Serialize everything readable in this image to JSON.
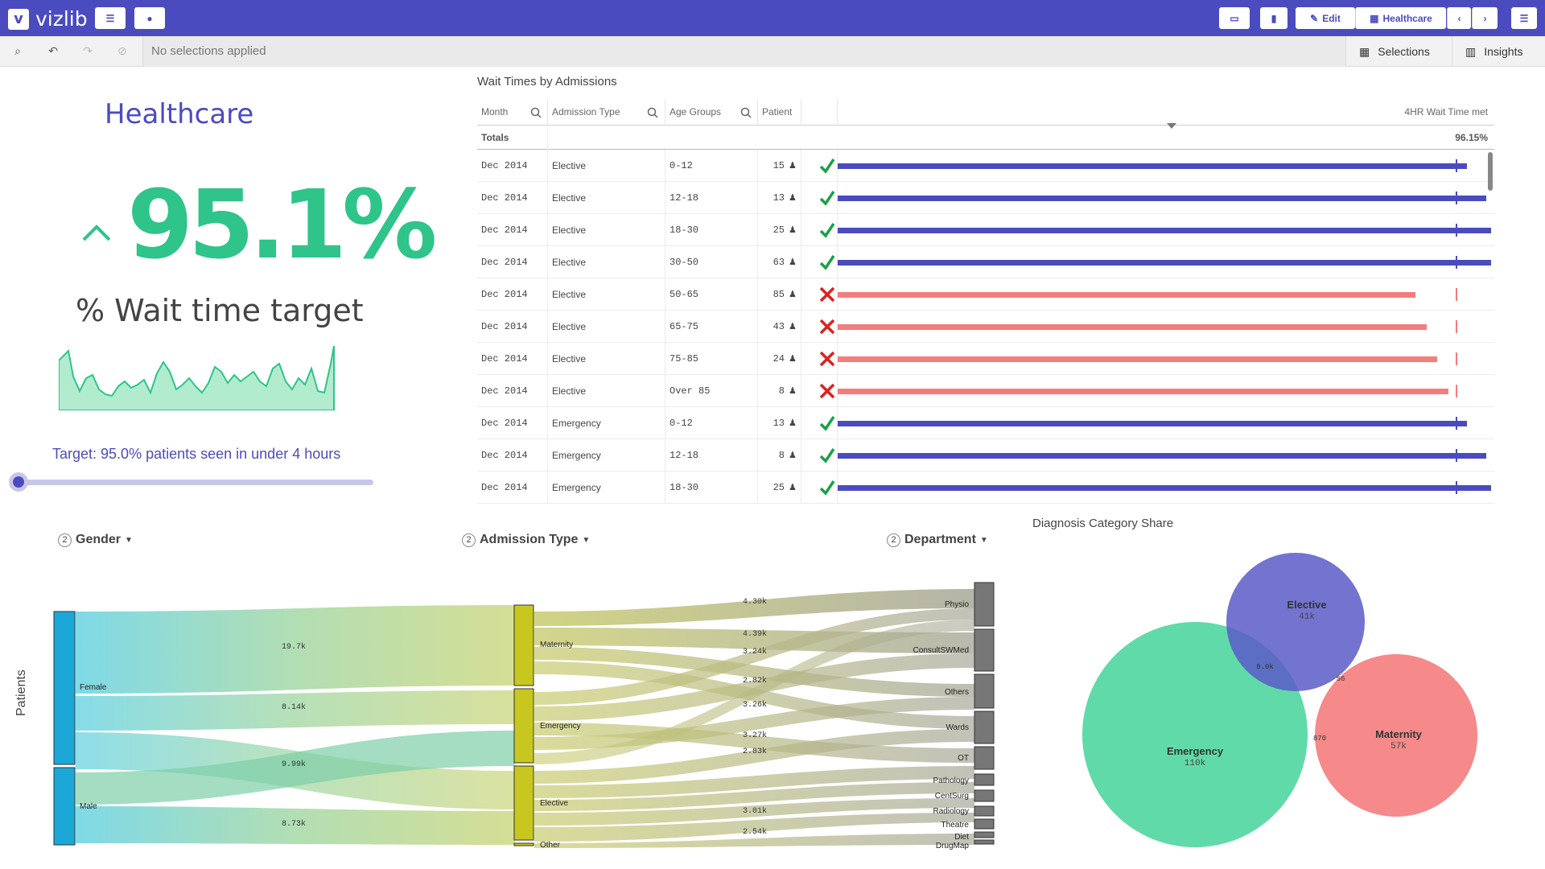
{
  "app": {
    "logo_text": "vizlib",
    "logo_mark": "v"
  },
  "toolbar": {
    "edit_label": "Edit",
    "sheet_label": "Healthcare"
  },
  "selections_bar": {
    "empty_text": "No selections applied",
    "selections_label": "Selections",
    "insights_label": "Insights"
  },
  "kpi": {
    "title": "Healthcare",
    "value": "95.1%",
    "label": "% Wait time target",
    "target_text": "Target: 95.0% patients seen in under 4 hours",
    "slider_fraction": 0.0,
    "colors": {
      "value": "#2ec48a",
      "accent": "#4b4bc0"
    }
  },
  "table": {
    "title": "Wait Times by Admissions",
    "columns": [
      "Month",
      "Admission Type",
      "Age Groups",
      "Patient",
      "",
      "4HR Wait Time met"
    ],
    "totals_label": "Totals",
    "totals_value": "96.15%",
    "target_fraction": 0.946,
    "rows": [
      {
        "month": "Dec 2014",
        "type": "Elective",
        "age": "0-12",
        "patients": "15",
        "met": true,
        "fraction": 0.963
      },
      {
        "month": "Dec 2014",
        "type": "Elective",
        "age": "12-18",
        "patients": "13",
        "met": true,
        "fraction": 0.992
      },
      {
        "month": "Dec 2014",
        "type": "Elective",
        "age": "18-30",
        "patients": "25",
        "met": true,
        "fraction": 1.0
      },
      {
        "month": "Dec 2014",
        "type": "Elective",
        "age": "30-50",
        "patients": "63",
        "met": true,
        "fraction": 1.0
      },
      {
        "month": "Dec 2014",
        "type": "Elective",
        "age": "50-65",
        "patients": "85",
        "met": false,
        "fraction": 0.884
      },
      {
        "month": "Dec 2014",
        "type": "Elective",
        "age": "65-75",
        "patients": "43",
        "met": false,
        "fraction": 0.902
      },
      {
        "month": "Dec 2014",
        "type": "Elective",
        "age": "75-85",
        "patients": "24",
        "met": false,
        "fraction": 0.918
      },
      {
        "month": "Dec 2014",
        "type": "Elective",
        "age": "Over 85",
        "patients": "8",
        "met": false,
        "fraction": 0.935
      },
      {
        "month": "Dec 2014",
        "type": "Emergency",
        "age": "0-12",
        "patients": "13",
        "met": true,
        "fraction": 0.963
      },
      {
        "month": "Dec 2014",
        "type": "Emergency",
        "age": "12-18",
        "patients": "8",
        "met": true,
        "fraction": 0.992
      },
      {
        "month": "Dec 2014",
        "type": "Emergency",
        "age": "18-30",
        "patients": "25",
        "met": true,
        "fraction": 1.0
      }
    ]
  },
  "sankey": {
    "dimensions": [
      {
        "num": "2",
        "label": "Gender"
      },
      {
        "num": "2",
        "label": "Admission Type"
      },
      {
        "num": "2",
        "label": "Department"
      }
    ],
    "axis_label": "Patients",
    "gender_nodes": [
      "Female",
      "Male"
    ],
    "admission_nodes": [
      "Maternity",
      "Emergency",
      "Elective",
      "Other"
    ],
    "department_nodes": [
      "Physio",
      "ConsultSWMed",
      "Others",
      "Wards",
      "OT",
      "Pathology",
      "CentSurg",
      "Radiology",
      "Theatre",
      "Diet",
      "DrugMap"
    ],
    "flow_labels_left": [
      "19.7k",
      "8.14k",
      "9.99k",
      "8.73k"
    ],
    "flow_labels_right": [
      "4.30k",
      "4.39k",
      "3.24k",
      "2.82k",
      "3.26k",
      "3.27k",
      "2.83k",
      "3.01k",
      "2.54k"
    ],
    "colors": {
      "gender": "#1ba8d6",
      "admission": "#c7c720",
      "department": "#777777"
    }
  },
  "venn": {
    "title": "Diagnosis Category Share",
    "sets": [
      {
        "name": "Elective",
        "value": "41k",
        "color": "#5b5bc8"
      },
      {
        "name": "Emergency",
        "value": "110k",
        "color": "#4fd6a0"
      },
      {
        "name": "Maternity",
        "value": "57k",
        "color": "#f57c7c"
      }
    ],
    "overlaps": [
      "8.0k",
      "56",
      "870"
    ]
  }
}
